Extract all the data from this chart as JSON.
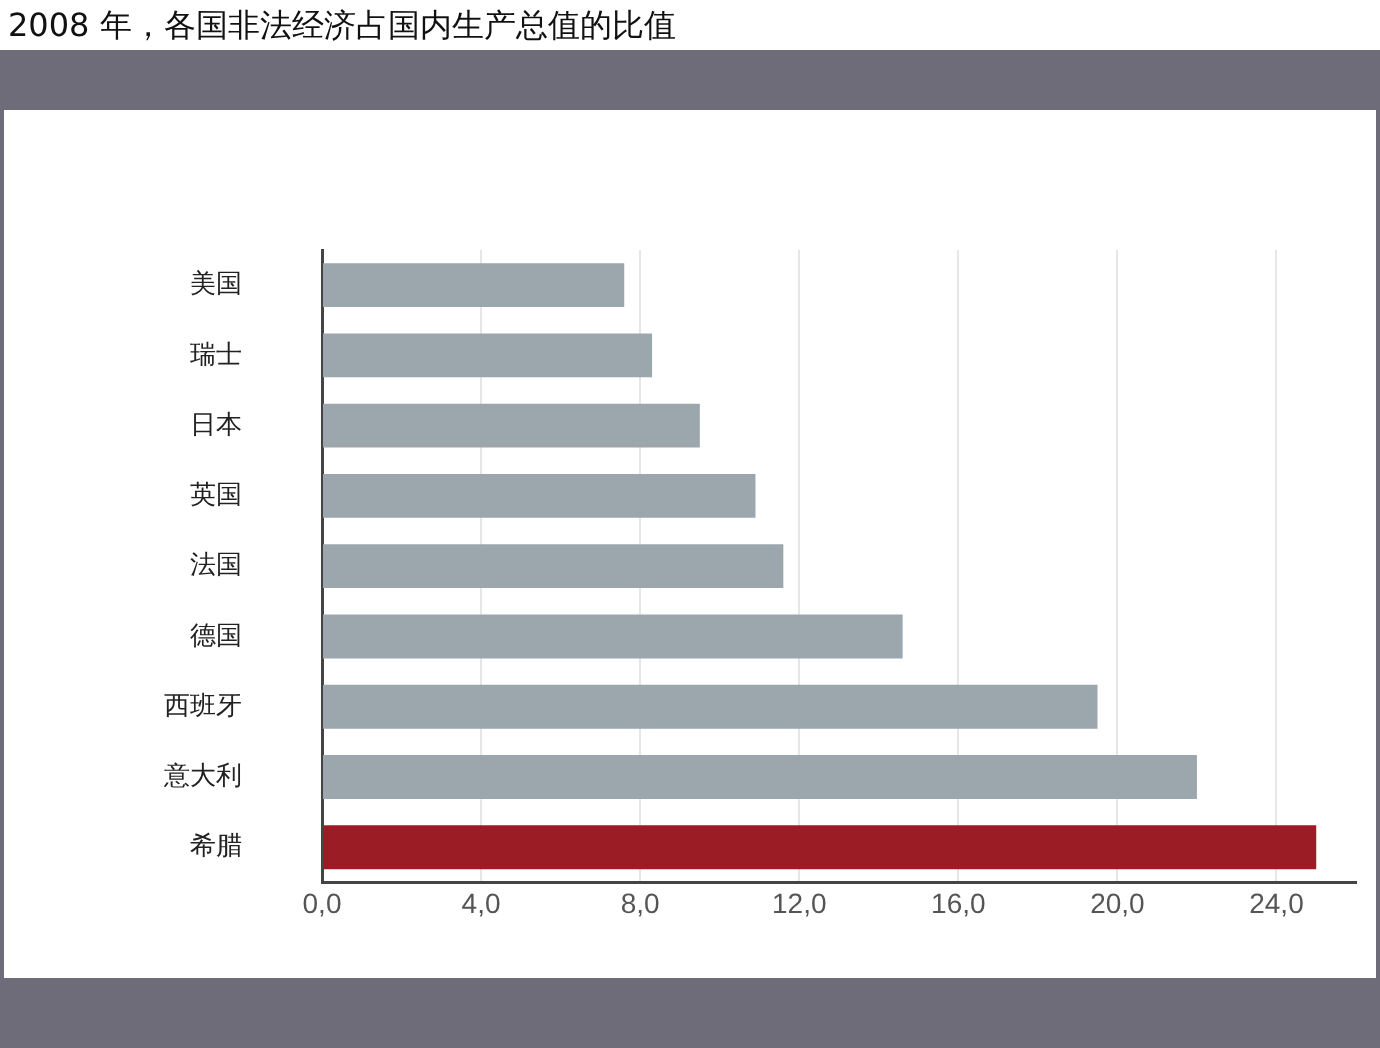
{
  "chart_data": {
    "type": "bar",
    "orientation": "horizontal",
    "title": "2008 年，各国非法经济占国内生产总值的比值",
    "categories": [
      "美国",
      "瑞士",
      "日本",
      "英国",
      "法国",
      "德国",
      "西班牙",
      "意大利",
      "希腊"
    ],
    "values": [
      7.6,
      8.3,
      9.5,
      10.9,
      11.6,
      14.6,
      19.5,
      22.0,
      25.0
    ],
    "colors": [
      "#9ba6ad",
      "#9ba6ad",
      "#9ba6ad",
      "#9ba6ad",
      "#9ba6ad",
      "#9ba6ad",
      "#9ba6ad",
      "#9ba6ad",
      "#9b1c25"
    ],
    "xlim": [
      0,
      26
    ],
    "xticks": [
      {
        "value": 0,
        "label": "0,0"
      },
      {
        "value": 4,
        "label": "4,0"
      },
      {
        "value": 8,
        "label": "8,0"
      },
      {
        "value": 12,
        "label": "12,0"
      },
      {
        "value": 16,
        "label": "16,0"
      },
      {
        "value": 20,
        "label": "20,0"
      },
      {
        "value": 24,
        "label": "24,0"
      }
    ],
    "grid": "x",
    "legend": false
  }
}
